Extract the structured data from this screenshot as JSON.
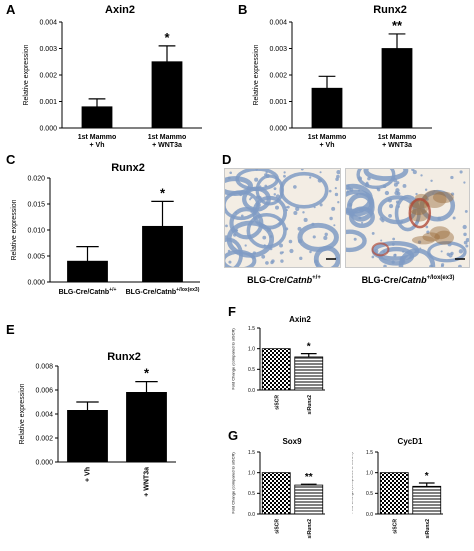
{
  "panel_labels": {
    "A": "A",
    "B": "B",
    "C": "C",
    "D": "D",
    "E": "E",
    "F": "F",
    "G": "G"
  },
  "histology": {
    "left_caption": "BLG-Cre/",
    "left_gene": "Catnb",
    "left_sup": "+/+",
    "right_caption": "BLG-Cre/",
    "right_gene": "Catnb",
    "right_sup": "+/lox(ex3)",
    "colors": {
      "tissue": "#f3ede4",
      "cells": "#7f9bc4",
      "stain": "#9a6a3a",
      "vessel": "#b04b3a"
    }
  },
  "chart_data": [
    {
      "id": "A",
      "type": "bar",
      "title": "Axin2",
      "ylabel": "Relative expression",
      "categories": [
        "1st Mammo\n+ Vh",
        "1st Mammo\n+ WNT3a"
      ],
      "values": [
        0.0008,
        0.0025
      ],
      "errors": [
        0.0003,
        0.0006
      ],
      "significance": [
        "",
        "*"
      ],
      "ylim": [
        0,
        0.004
      ],
      "yticks": [
        "0.000",
        "0.001",
        "0.002",
        "0.003",
        "0.004"
      ],
      "fill": "#000000"
    },
    {
      "id": "B",
      "type": "bar",
      "title": "Runx2",
      "ylabel": "Relative expression",
      "categories": [
        "1st Mammo\n+ Vh",
        "1st Mammo\n+ WNT3a"
      ],
      "values": [
        0.0015,
        0.003
      ],
      "errors": [
        0.00045,
        0.00055
      ],
      "significance": [
        "",
        "**"
      ],
      "ylim": [
        0,
        0.004
      ],
      "yticks": [
        "0.000",
        "0.001",
        "0.002",
        "0.003",
        "0.004"
      ],
      "fill": "#000000"
    },
    {
      "id": "C",
      "type": "bar",
      "title": "Runx2",
      "ylabel": "Relative expression",
      "categories": [
        "BLG-Cre/Catnb+/+",
        "BLG-Cre/Catnb+/lox(ex3)"
      ],
      "categories_main": [
        "BLG-Cre/Catnb",
        "BLG-Cre/Catnb"
      ],
      "categories_sup": [
        "+/+",
        "+/lox(ex3)"
      ],
      "values": [
        0.004,
        0.0107
      ],
      "errors": [
        0.0028,
        0.0048
      ],
      "significance": [
        "",
        "*"
      ],
      "ylim": [
        0,
        0.02
      ],
      "yticks": [
        "0.000",
        "0.005",
        "0.010",
        "0.015",
        "0.020"
      ],
      "fill": "#000000"
    },
    {
      "id": "E",
      "type": "bar",
      "title": "Runx2",
      "ylabel": "Relative expression",
      "categories": [
        "+ Vh",
        "+ WNT3a"
      ],
      "values": [
        0.0043,
        0.0058
      ],
      "errors": [
        0.0007,
        0.0009
      ],
      "significance": [
        "",
        "*"
      ],
      "ylim": [
        0,
        0.008
      ],
      "yticks": [
        "0.000",
        "0.002",
        "0.004",
        "0.006",
        "0.008"
      ],
      "fill": "#000000"
    },
    {
      "id": "F",
      "type": "bar",
      "title": "Axin2",
      "ylabel": "Fold Change (compared to siSCR)",
      "categories": [
        "siSCR",
        "siRunx2"
      ],
      "values": [
        1.0,
        0.8
      ],
      "errors": [
        0,
        0.08
      ],
      "significance": [
        "",
        "*"
      ],
      "ylim": [
        0,
        1.5
      ],
      "yticks": [
        "0.0",
        "0.5",
        "1.0",
        "1.5"
      ],
      "patterns": [
        "checker",
        "hlines"
      ]
    },
    {
      "id": "G1",
      "type": "bar",
      "title": "Sox9",
      "ylabel": "Fold Change (compared to siSCR)",
      "categories": [
        "siSCR",
        "siRunx2"
      ],
      "values": [
        1.0,
        0.7
      ],
      "errors": [
        0,
        0.02
      ],
      "significance": [
        "",
        "**"
      ],
      "ylim": [
        0,
        1.5
      ],
      "yticks": [
        "0.0",
        "0.5",
        "1.0",
        "1.5"
      ],
      "patterns": [
        "checker",
        "hlines"
      ]
    },
    {
      "id": "G2",
      "type": "bar",
      "title": "CycD1",
      "ylabel": "Fold Change (compared to siSCR)",
      "categories": [
        "siSCR",
        "siRunx2"
      ],
      "values": [
        1.0,
        0.67
      ],
      "errors": [
        0,
        0.08
      ],
      "significance": [
        "",
        "*"
      ],
      "ylim": [
        0,
        1.5
      ],
      "yticks": [
        "0.0",
        "0.5",
        "1.0",
        "1.5"
      ],
      "patterns": [
        "checker",
        "hlines"
      ]
    }
  ]
}
